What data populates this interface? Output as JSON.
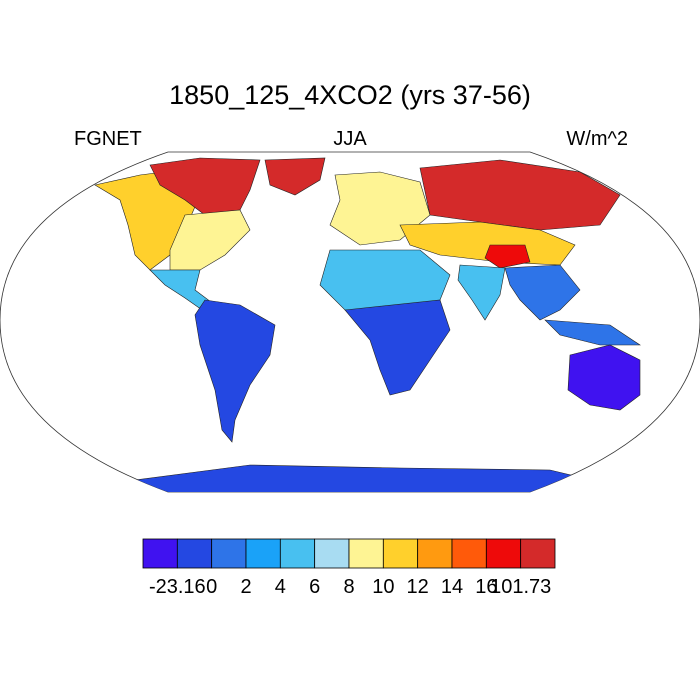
{
  "header": {
    "title": "1850_125_4XCO2 (yrs 37-56)",
    "left": "FGNET",
    "center": "JJA",
    "right": "W/m^2"
  },
  "colorbar": {
    "colors": [
      "#4012f0",
      "#2448e2",
      "#2e74e8",
      "#1aa2f8",
      "#48c0f0",
      "#a8dcf2",
      "#fef494",
      "#ffd02c",
      "#ff9a10",
      "#ff5a0a",
      "#ee0a0a",
      "#d42a2a"
    ],
    "labels": [
      "-23.16",
      "0",
      "2",
      "4",
      "6",
      "8",
      "10",
      "12",
      "14",
      "16",
      "101.73"
    ]
  },
  "map": {
    "projection": "robinson",
    "land_fill_range": [
      "-23.16",
      "101.73"
    ],
    "regions": [
      {
        "name": "arctic-canada-greenland",
        "color": "#d42a2a"
      },
      {
        "name": "north-america-west",
        "color": "#ffd02c"
      },
      {
        "name": "north-america-east",
        "color": "#fef494"
      },
      {
        "name": "central-america",
        "color": "#48c0f0"
      },
      {
        "name": "south-america",
        "color": "#2448e2"
      },
      {
        "name": "europe",
        "color": "#fef494"
      },
      {
        "name": "siberia",
        "color": "#d42a2a"
      },
      {
        "name": "central-asia",
        "color": "#ffd02c"
      },
      {
        "name": "tibet",
        "color": "#ee0a0a"
      },
      {
        "name": "north-africa",
        "color": "#48c0f0"
      },
      {
        "name": "south-africa",
        "color": "#2448e2"
      },
      {
        "name": "india",
        "color": "#48c0f0"
      },
      {
        "name": "southeast-asia",
        "color": "#2e74e8"
      },
      {
        "name": "australia",
        "color": "#4012f0"
      },
      {
        "name": "antarctica",
        "color": "#2448e2"
      }
    ]
  }
}
